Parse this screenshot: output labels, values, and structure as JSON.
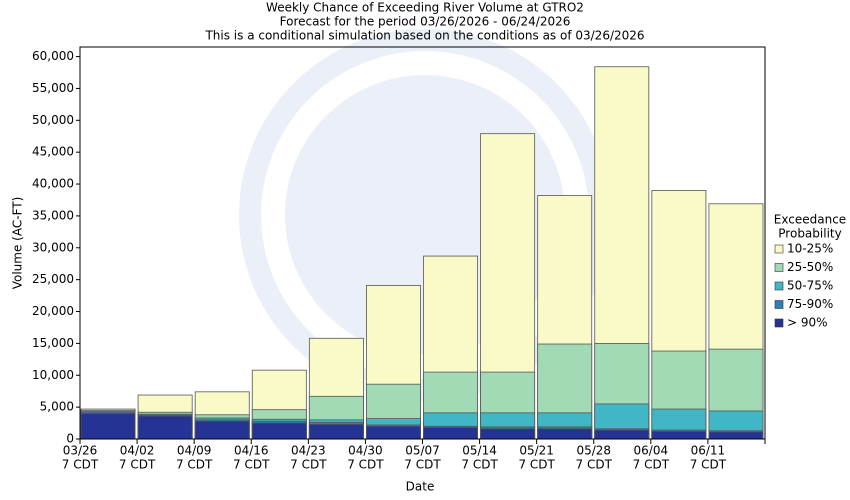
{
  "chart_data": {
    "type": "bar",
    "title": [
      "Weekly Chance of Exceeding River Volume at GTRO2",
      "Forecast for the period 03/26/2026 - 06/24/2026",
      "This is a conditional simulation based on the conditions as of 03/26/2026"
    ],
    "x_label": "Date",
    "y_label": "Volume (AC-FT)",
    "categories": [
      "03/26",
      "04/02",
      "04/09",
      "04/16",
      "04/23",
      "04/30",
      "05/07",
      "05/14",
      "05/21",
      "05/28",
      "06/04",
      "06/11"
    ],
    "category_sublabel": "7 CDT",
    "legend_title": [
      "Exceedance",
      "Probability"
    ],
    "series": [
      {
        "name": "10-25%",
        "color": "#fafac8",
        "values": [
          4700,
          6900,
          7400,
          10800,
          15800,
          24100,
          28700,
          47900,
          38200,
          58400,
          39000,
          36900
        ]
      },
      {
        "name": "25-50%",
        "color": "#a1dab4",
        "values": [
          4500,
          4200,
          3800,
          4600,
          6700,
          8600,
          10500,
          10500,
          14900,
          15000,
          13800,
          14100
        ]
      },
      {
        "name": "50-75%",
        "color": "#41b6c4",
        "values": [
          4300,
          3900,
          3300,
          3100,
          3000,
          3200,
          4100,
          4100,
          4100,
          5500,
          4700,
          4400
        ]
      },
      {
        "name": "75-90%",
        "color": "#2c7fb8",
        "values": [
          4200,
          3750,
          3000,
          2800,
          2600,
          2200,
          2000,
          1900,
          1900,
          1600,
          1400,
          1300
        ]
      },
      {
        "name": "> 90%",
        "color": "#253494",
        "values": [
          4000,
          3600,
          2800,
          2500,
          2300,
          2000,
          1800,
          1600,
          1600,
          1400,
          1200,
          1100
        ]
      }
    ],
    "ylim": [
      0,
      61500
    ],
    "yticks": [
      0,
      {
        "value": 5000,
        "label": "5,000"
      },
      {
        "value": 10000,
        "label": "10,000"
      },
      {
        "value": 15000,
        "label": "15,000"
      },
      {
        "value": 20000,
        "label": "20,000"
      },
      {
        "value": 25000,
        "label": "25,000"
      },
      {
        "value": 30000,
        "label": "30,000"
      },
      {
        "value": 35000,
        "label": "35,000"
      },
      {
        "value": 40000,
        "label": "40,000"
      },
      {
        "value": 45000,
        "label": "45,000"
      },
      {
        "value": 50000,
        "label": "50,000"
      },
      {
        "value": 55000,
        "label": "55,000"
      },
      {
        "value": 60000,
        "label": "60,000"
      }
    ],
    "legend_position": "right"
  }
}
